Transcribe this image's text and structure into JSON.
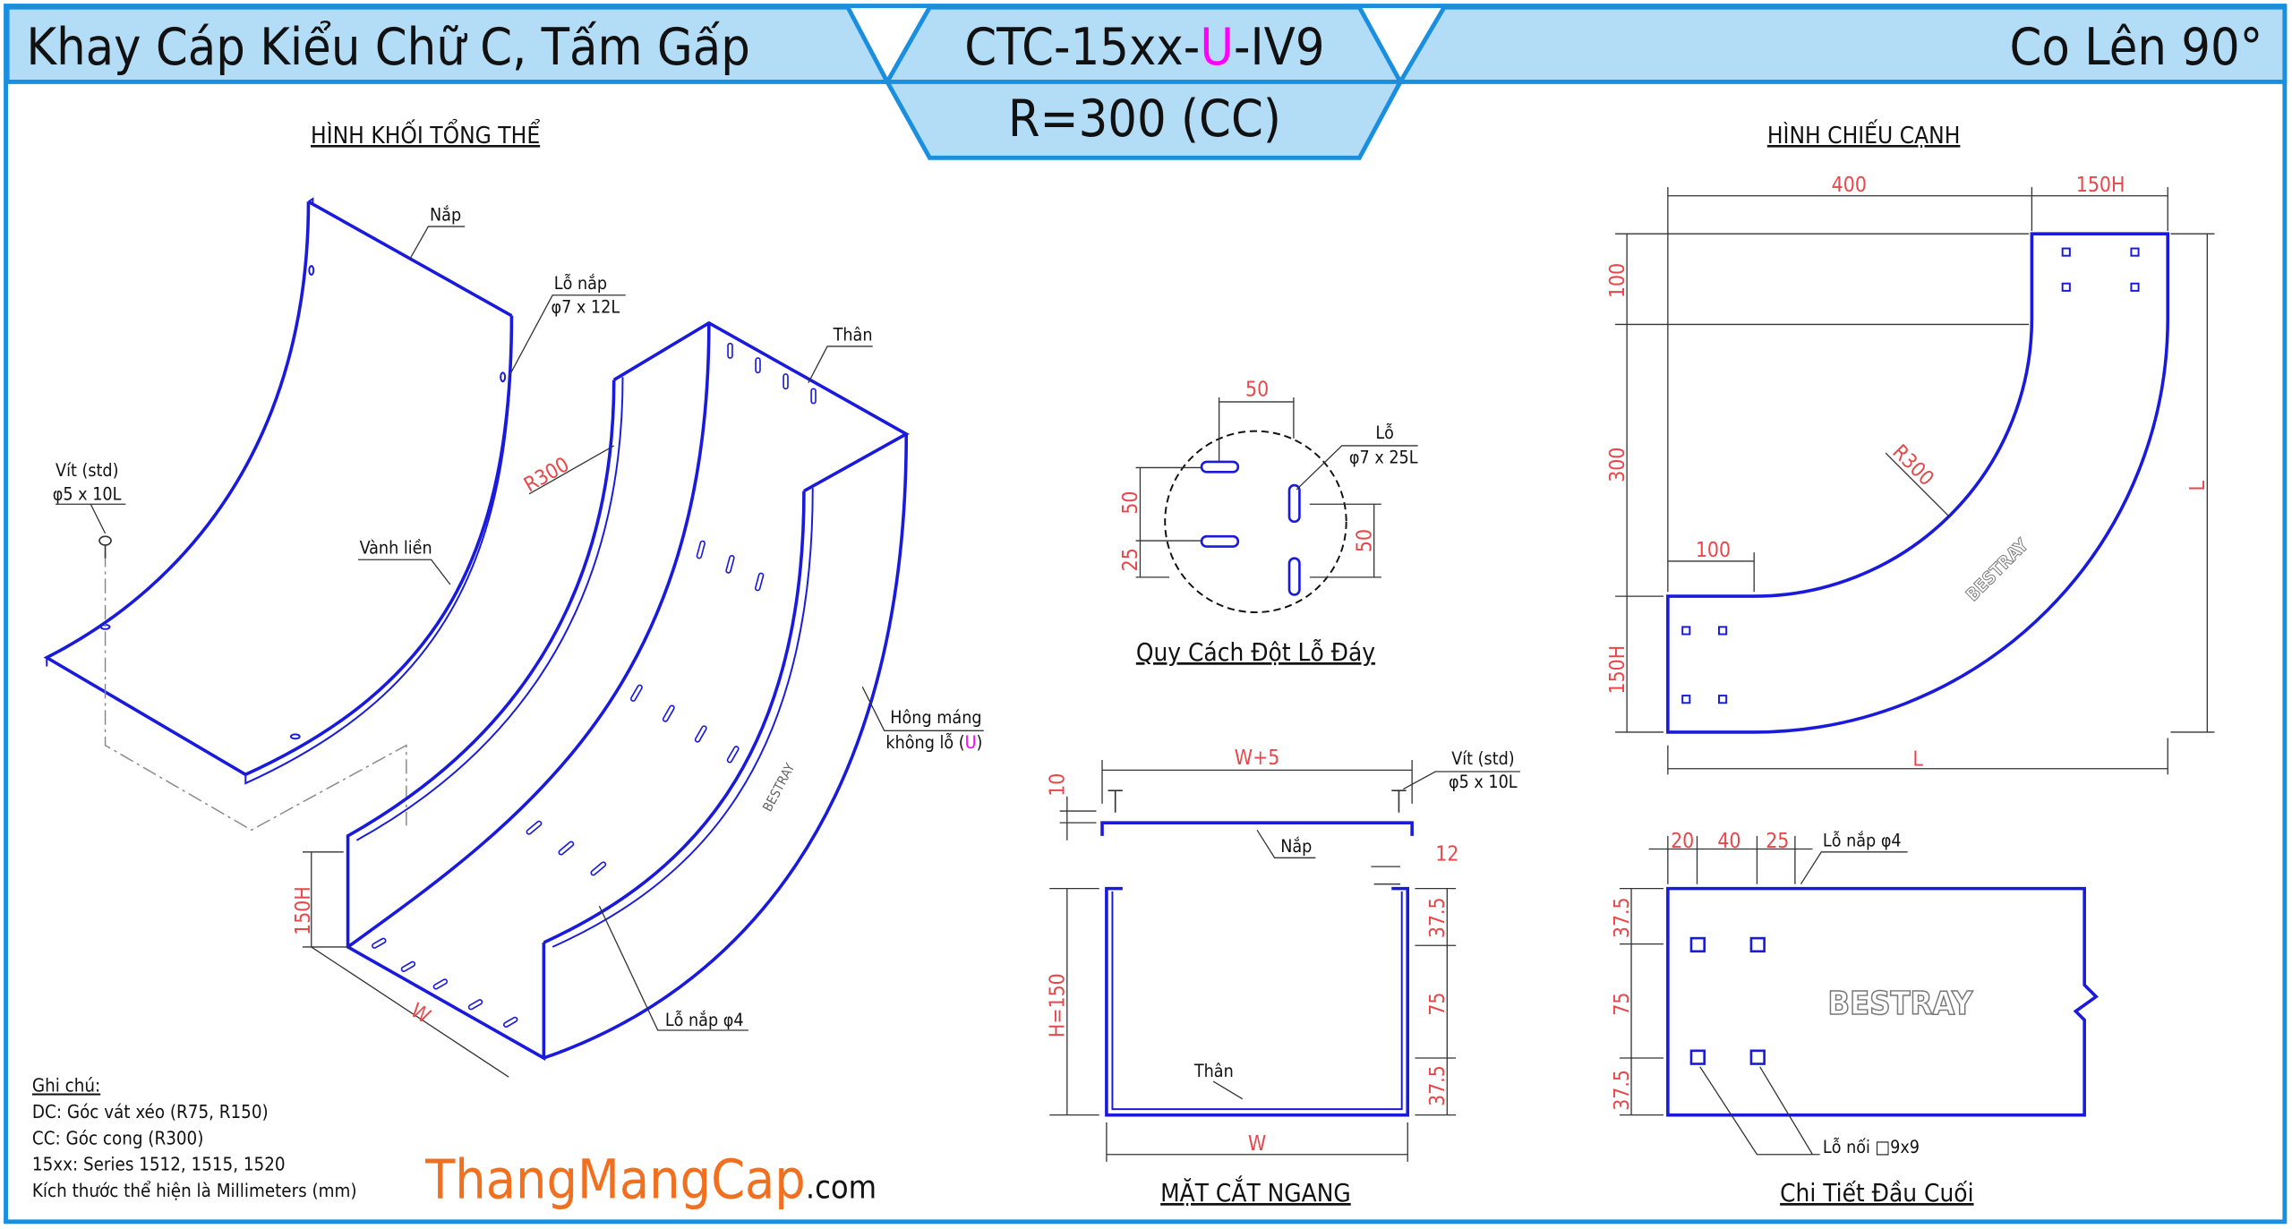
{
  "header": {
    "title_left": "Khay Cáp Kiểu Chữ C, Tấm Gấp",
    "code_prefix": "CTC-15xx-",
    "code_highlight": "U",
    "code_suffix": "-IV9",
    "code_sub": "R=300 (CC)",
    "title_right": "Co Lên 90°"
  },
  "colors": {
    "border": "#1a8fe0",
    "header_fill": "#b3dcf7",
    "object": "#1a1adc",
    "dimension": "#e8474a",
    "highlight": "#ff00ff",
    "logo": "#f07020"
  },
  "iso_view": {
    "title": "HÌNH KHỐI TỔNG THỂ",
    "cover": "Nắp",
    "cover_hole_1": "Lỗ nắp",
    "cover_hole_2": "φ7 x 12L",
    "body": "Thân",
    "screw_1": "Vít (std)",
    "screw_2": "φ5 x 10L",
    "rim": "Vành liền",
    "radius": "R300",
    "side_1": "Hông máng",
    "side_2a": "không lỗ (",
    "side_2b": "U",
    "side_2c": ")",
    "brand": "BESTRAY",
    "height": "150H",
    "width": "W",
    "cover_hole_small": "Lỗ nắp φ4"
  },
  "hole_pattern": {
    "title": "Quy Cách Đột Lỗ Đáy",
    "dim_top": "50",
    "hole_1": "Lỗ",
    "hole_2": "φ7 x 25L",
    "dim_left_1": "50",
    "dim_left_2": "25",
    "dim_right": "50"
  },
  "cross_section": {
    "title": "MẶT CẮT NGANG",
    "width_top": "W+5",
    "screw_1": "Vít (std)",
    "screw_2": "φ5 x 10L",
    "dim_10": "10",
    "cover": "Nắp",
    "dim_12": "12",
    "dim_a": "37.5",
    "height": "H=150",
    "dim_b": "75",
    "dim_c": "37.5",
    "body": "Thân",
    "width_bottom": "W"
  },
  "side_view": {
    "title": "HÌNH CHIẾU CẠNH",
    "dim_400": "400",
    "dim_150h_top": "150H",
    "dim_100_v": "100",
    "dim_300": "300",
    "radius": "R300",
    "dim_l_v": "L",
    "dim_100_h": "100",
    "brand": "BESTRAY",
    "dim_150h_left": "150H",
    "dim_l_h": "L"
  },
  "end_detail": {
    "title": "Chi Tiết Đầu Cuối",
    "dim_20": "20",
    "dim_40": "40",
    "dim_25": "25",
    "cover_hole": "Lỗ nắp φ4",
    "dim_a": "37.5",
    "dim_b": "75",
    "dim_c": "37.5",
    "brand": "BESTRAY",
    "joint_hole": "Lỗ nối □9x9"
  },
  "notes": {
    "heading": "Ghi chú:",
    "lines": [
      "DC: Góc vát xéo (R75, R150)",
      "CC: Góc cong (R300)",
      "15xx: Series 1512, 1515, 1520",
      "Kích thước thể hiện là Millimeters (mm)"
    ]
  },
  "logo": {
    "main": "ThangMangCap",
    "suffix": ".com"
  }
}
